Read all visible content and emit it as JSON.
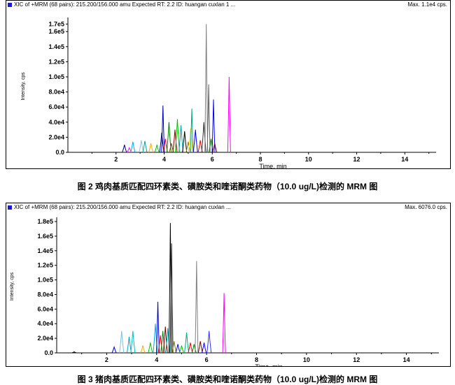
{
  "charts": [
    {
      "header_left": "XIC of +MRM (68 pairs): 215.200/156.000 amu Expected RT: 2.2 ID: huangan cuxlan 1 ...",
      "header_right": "Max. 1.1e4 cps.",
      "caption": "图 2 鸡肉基质匹配四环素类、磺胺类和喹诺酮类药物（10.0 ug/L)检测的 MRM 图"
    },
    {
      "header_left": "XIC of +MRM (68 pairs): 215.200/156.000 amu Expected RT: 2.2 ID: huangan cuxlan ...",
      "header_right": "Max. 6076.0 cps.",
      "caption": "图 3 猪肉基质匹配四环素类、磺胺类和喹诺酮类药物（10.0 ug/L)检测的 MRM 图"
    }
  ],
  "chart_data": [
    {
      "type": "line",
      "xlabel": "Time, min",
      "ylabel": "Intensity, cps",
      "xlim": [
        0,
        15.3
      ],
      "ylim": [
        0,
        175000
      ],
      "xticks": [
        2,
        4,
        6,
        8,
        10,
        12,
        14
      ],
      "yticks": [
        0,
        20000,
        40000,
        60000,
        80000,
        100000,
        120000,
        140000,
        160000,
        170000
      ],
      "ytick_labels": [
        "0.0",
        "2.0e4",
        "4.0e4",
        "6.0e4",
        "8.0e4",
        "1.0e5",
        "1.2e5",
        "1.4e5",
        "1.6e5",
        "1.7e5"
      ],
      "peaks": [
        {
          "rt": 2.35,
          "height": 10000,
          "color": "#000080"
        },
        {
          "rt": 2.55,
          "height": 6000,
          "color": "#ff00ff"
        },
        {
          "rt": 2.7,
          "height": 14000,
          "color": "#00aaff"
        },
        {
          "rt": 3.05,
          "height": 16000,
          "color": "#90c0e0"
        },
        {
          "rt": 3.2,
          "height": 15000,
          "color": "#00a0a0"
        },
        {
          "rt": 3.45,
          "height": 12000,
          "color": "#ffaa00"
        },
        {
          "rt": 3.7,
          "height": 10000,
          "color": "#00c000"
        },
        {
          "rt": 3.9,
          "height": 26000,
          "color": "#000080"
        },
        {
          "rt": 3.95,
          "height": 62000,
          "color": "#0000c0"
        },
        {
          "rt": 4.05,
          "height": 18000,
          "color": "#ff0000"
        },
        {
          "rt": 4.2,
          "height": 40000,
          "color": "#008000"
        },
        {
          "rt": 4.3,
          "height": 12000,
          "color": "#8b4513"
        },
        {
          "rt": 4.45,
          "height": 30000,
          "color": "#800000"
        },
        {
          "rt": 4.55,
          "height": 44000,
          "color": "#00c000"
        },
        {
          "rt": 4.7,
          "height": 36000,
          "color": "#00a0a0"
        },
        {
          "rt": 4.85,
          "height": 28000,
          "color": "#000000"
        },
        {
          "rt": 5.0,
          "height": 14000,
          "color": "#808000"
        },
        {
          "rt": 5.1,
          "height": 32000,
          "color": "#ffcc00"
        },
        {
          "rt": 5.15,
          "height": 58000,
          "color": "#00aa88"
        },
        {
          "rt": 5.3,
          "height": 30000,
          "color": "#0000ff"
        },
        {
          "rt": 5.5,
          "height": 16000,
          "color": "#ff0000"
        },
        {
          "rt": 5.65,
          "height": 40000,
          "color": "#333333"
        },
        {
          "rt": 5.75,
          "height": 170000,
          "color": "#808080"
        },
        {
          "rt": 5.85,
          "height": 90000,
          "color": "#606060"
        },
        {
          "rt": 5.95,
          "height": 18000,
          "color": "#008000"
        },
        {
          "rt": 6.05,
          "height": 70000,
          "color": "#0000ff"
        },
        {
          "rt": 6.1,
          "height": 12000,
          "color": "#800000"
        },
        {
          "rt": 6.7,
          "height": 100000,
          "color": "#ff00ff"
        }
      ]
    },
    {
      "type": "line",
      "xlabel": "Time, min",
      "ylabel": "Intensity, cps",
      "xlim": [
        0,
        15.3
      ],
      "ylim": [
        0,
        182000
      ],
      "xticks": [
        2,
        4,
        6,
        8,
        10,
        12,
        14
      ],
      "yticks": [
        0,
        20000,
        40000,
        60000,
        80000,
        100000,
        120000,
        140000,
        160000,
        180000
      ],
      "ytick_labels": [
        "0.0",
        "2.0e4",
        "4.0e4",
        "6.0e4",
        "8.0e4",
        "1.0e5",
        "1.2e5",
        "1.4e5",
        "1.6e5",
        "1.8e5"
      ],
      "peaks": [
        {
          "rt": 0.7,
          "height": 1500,
          "color": "#000000"
        },
        {
          "rt": 2.3,
          "height": 8000,
          "color": "#0000c0"
        },
        {
          "rt": 2.6,
          "height": 30000,
          "color": "#80c0e0"
        },
        {
          "rt": 2.9,
          "height": 22000,
          "color": "#00a0c0"
        },
        {
          "rt": 3.05,
          "height": 30000,
          "color": "#00c0c0"
        },
        {
          "rt": 3.45,
          "height": 10000,
          "color": "#ffaa00"
        },
        {
          "rt": 3.75,
          "height": 14000,
          "color": "#00c000"
        },
        {
          "rt": 3.95,
          "height": 40000,
          "color": "#00a0ff"
        },
        {
          "rt": 4.05,
          "height": 70000,
          "color": "#0000c0"
        },
        {
          "rt": 4.15,
          "height": 24000,
          "color": "#ff0000"
        },
        {
          "rt": 4.25,
          "height": 30000,
          "color": "#008000"
        },
        {
          "rt": 4.35,
          "height": 36000,
          "color": "#800000"
        },
        {
          "rt": 4.45,
          "height": 34000,
          "color": "#00a0a0"
        },
        {
          "rt": 4.55,
          "height": 178000,
          "color": "#000000"
        },
        {
          "rt": 4.6,
          "height": 150000,
          "color": "#303030"
        },
        {
          "rt": 4.7,
          "height": 16000,
          "color": "#808000"
        },
        {
          "rt": 4.85,
          "height": 12000,
          "color": "#0000ff"
        },
        {
          "rt": 5.0,
          "height": 10000,
          "color": "#00c000"
        },
        {
          "rt": 5.2,
          "height": 28000,
          "color": "#00aa88"
        },
        {
          "rt": 5.35,
          "height": 14000,
          "color": "#ff0000"
        },
        {
          "rt": 5.5,
          "height": 12000,
          "color": "#008000"
        },
        {
          "rt": 5.6,
          "height": 126000,
          "color": "#808080"
        },
        {
          "rt": 5.75,
          "height": 16000,
          "color": "#800000"
        },
        {
          "rt": 5.9,
          "height": 14000,
          "color": "#0000ff"
        },
        {
          "rt": 6.1,
          "height": 30000,
          "color": "#3030ff"
        },
        {
          "rt": 6.7,
          "height": 82000,
          "color": "#ff00ff"
        }
      ]
    }
  ]
}
